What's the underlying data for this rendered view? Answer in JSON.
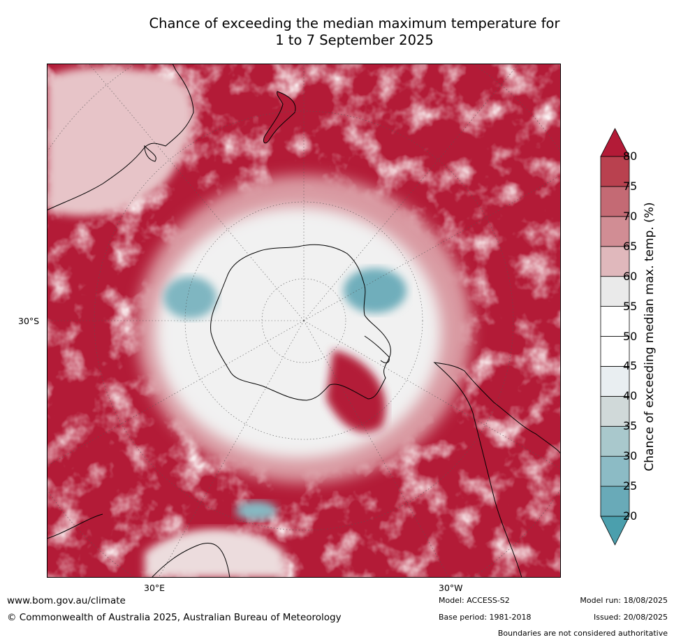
{
  "title_line1": "Chance of exceeding the median maximum temperature for",
  "title_line2": "1 to 7 September 2025",
  "map": {
    "projection": "south-polar-stereographic",
    "lat_label_left": "30°S",
    "lon_label_bottom_left": "30°E",
    "lon_label_bottom_right": "30°W"
  },
  "colorbar": {
    "label": "Chance of exceeding median max. temp. (%)",
    "ticks": [
      "20",
      "25",
      "30",
      "35",
      "40",
      "45",
      "50",
      "55",
      "60",
      "65",
      "70",
      "75",
      "80"
    ],
    "colors": [
      "#4b9fad",
      "#69aab8",
      "#8cbbc5",
      "#a9c8cc",
      "#d0d9d9",
      "#e9eef1",
      "#ffffff",
      "#ffffff",
      "#eaeaea",
      "#e0b8bc",
      "#d18d94",
      "#c46a74",
      "#b9414f",
      "#b31b37"
    ]
  },
  "footer": {
    "website": "www.bom.gov.au/climate",
    "copyright": "© Commonwealth of Australia 2025, Australian Bureau of Meteorology",
    "model": "Model: ACCESS-S2",
    "base_period": "Base period: 1981-2018",
    "model_run": "Model run: 18/08/2025",
    "issued": "Issued: 20/08/2025",
    "disclaimer": "Boundaries are not considered authoritative"
  }
}
